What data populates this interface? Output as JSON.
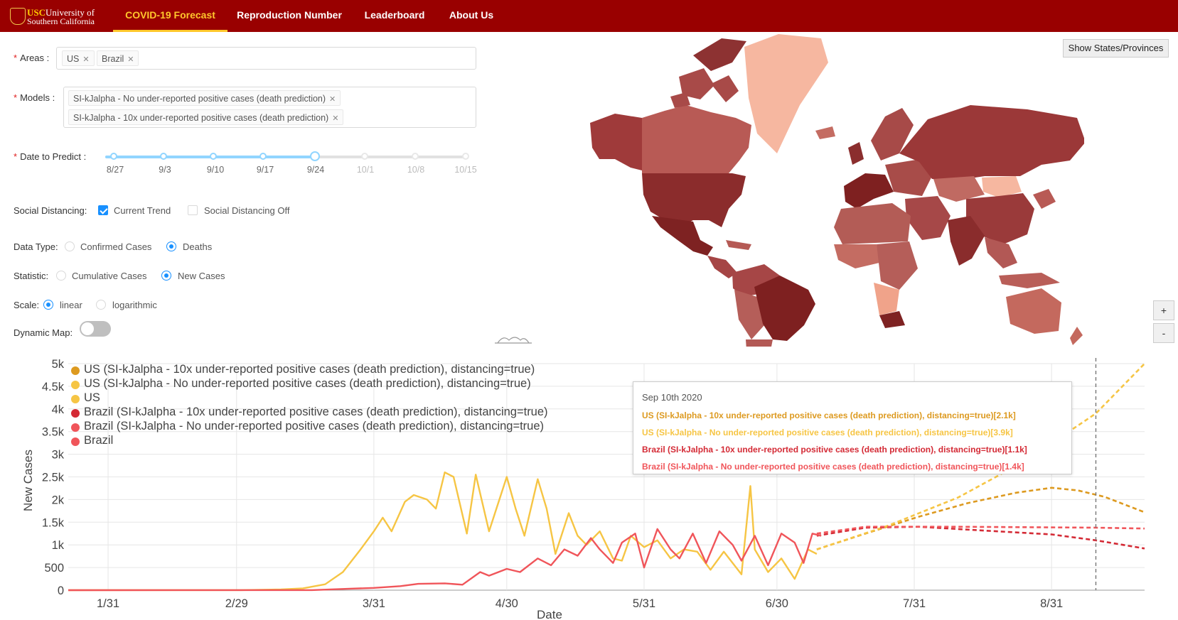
{
  "header": {
    "logo": {
      "abbr": "USC",
      "line1": "University of",
      "line2": "Southern California"
    },
    "nav": [
      {
        "label": "COVID-19 Forecast",
        "active": true
      },
      {
        "label": "Reproduction Number",
        "active": false
      },
      {
        "label": "Leaderboard",
        "active": false
      },
      {
        "label": "About Us",
        "active": false
      }
    ],
    "colors": {
      "bar": "#990000",
      "active": "#ffc72c"
    }
  },
  "form": {
    "areas": {
      "label": "Areas",
      "tags": [
        "US",
        "Brazil"
      ]
    },
    "models": {
      "label": "Models",
      "tags": [
        "SI-kJalpha - No under-reported positive cases (death prediction)",
        "SI-kJalpha - 10x under-reported positive cases (death prediction)"
      ]
    },
    "date": {
      "label": "Date to Predict",
      "marks": [
        "8/27",
        "9/3",
        "9/10",
        "9/17",
        "9/24",
        "10/1",
        "10/8",
        "10/15"
      ],
      "selected": "9/24"
    },
    "social": {
      "label": "Social Distancing:",
      "options": [
        {
          "label": "Current Trend",
          "checked": true
        },
        {
          "label": "Social Distancing Off",
          "checked": false
        }
      ]
    },
    "datatype": {
      "label": "Data Type:",
      "options": [
        {
          "label": "Confirmed Cases",
          "checked": false
        },
        {
          "label": "Deaths",
          "checked": true
        }
      ]
    },
    "statistic": {
      "label": "Statistic:",
      "options": [
        {
          "label": "Cumulative Cases",
          "checked": false
        },
        {
          "label": "New Cases",
          "checked": true
        }
      ]
    },
    "scale": {
      "label": "Scale:",
      "options": [
        {
          "label": "linear",
          "checked": true
        },
        {
          "label": "logarithmic",
          "checked": false
        }
      ]
    },
    "dynamic_map": {
      "label": "Dynamic Map:",
      "on": false
    }
  },
  "map": {
    "button": "Show States/Provinces",
    "zoom_in": "+",
    "zoom_out": "-"
  },
  "chart_data": {
    "type": "line",
    "xlabel": "Date",
    "ylabel": "New Cases",
    "ylim": [
      0,
      5000
    ],
    "yticks": [
      "0",
      "500",
      "1k",
      "1.5k",
      "2k",
      "2.5k",
      "3k",
      "3.5k",
      "4k",
      "4.5k",
      "5k"
    ],
    "xticks": [
      "1/31",
      "2/29",
      "3/31",
      "4/30",
      "5/31",
      "6/30",
      "7/31",
      "8/31"
    ],
    "x_range": [
      "2020-01-22",
      "2020-09-21"
    ],
    "hover_date": "2020-09-10",
    "series": [
      {
        "name": "US (SI-kJalpha - 10x under-reported positive cases (death prediction), distancing=true)",
        "color": "#dd9a20",
        "dash": true,
        "points": [
          [
            "2020-07-09",
            900
          ],
          [
            "2020-07-20",
            1250
          ],
          [
            "2020-08-01",
            1620
          ],
          [
            "2020-08-12",
            1920
          ],
          [
            "2020-08-23",
            2150
          ],
          [
            "2020-08-31",
            2260
          ],
          [
            "2020-09-06",
            2200
          ],
          [
            "2020-09-12",
            2060
          ],
          [
            "2020-09-21",
            1720
          ]
        ]
      },
      {
        "name": "US (SI-kJalpha - No under-reported positive cases (death prediction), distancing=true)",
        "color": "#f6c544",
        "dash": true,
        "points": [
          [
            "2020-07-09",
            900
          ],
          [
            "2020-07-25",
            1420
          ],
          [
            "2020-08-10",
            2050
          ],
          [
            "2020-08-25",
            2850
          ],
          [
            "2020-09-10",
            3900
          ],
          [
            "2020-09-21",
            5000
          ]
        ]
      },
      {
        "name": "US",
        "color": "#f6c544",
        "dash": false,
        "points": [
          [
            "2020-01-22",
            0
          ],
          [
            "2020-03-01",
            2
          ],
          [
            "2020-03-10",
            15
          ],
          [
            "2020-03-15",
            40
          ],
          [
            "2020-03-20",
            130
          ],
          [
            "2020-03-24",
            400
          ],
          [
            "2020-03-28",
            900
          ],
          [
            "2020-03-31",
            1300
          ],
          [
            "2020-04-02",
            1600
          ],
          [
            "2020-04-04",
            1300
          ],
          [
            "2020-04-07",
            1950
          ],
          [
            "2020-04-09",
            2100
          ],
          [
            "2020-04-12",
            2000
          ],
          [
            "2020-04-14",
            1800
          ],
          [
            "2020-04-16",
            2600
          ],
          [
            "2020-04-18",
            2500
          ],
          [
            "2020-04-21",
            1250
          ],
          [
            "2020-04-23",
            2550
          ],
          [
            "2020-04-26",
            1300
          ],
          [
            "2020-04-30",
            2500
          ],
          [
            "2020-05-02",
            1800
          ],
          [
            "2020-05-04",
            1200
          ],
          [
            "2020-05-07",
            2450
          ],
          [
            "2020-05-09",
            1800
          ],
          [
            "2020-05-11",
            800
          ],
          [
            "2020-05-14",
            1700
          ],
          [
            "2020-05-16",
            1200
          ],
          [
            "2020-05-18",
            1000
          ],
          [
            "2020-05-21",
            1300
          ],
          [
            "2020-05-24",
            700
          ],
          [
            "2020-05-26",
            650
          ],
          [
            "2020-05-28",
            1200
          ],
          [
            "2020-05-31",
            950
          ],
          [
            "2020-06-03",
            1100
          ],
          [
            "2020-06-06",
            700
          ],
          [
            "2020-06-09",
            900
          ],
          [
            "2020-06-12",
            850
          ],
          [
            "2020-06-15",
            450
          ],
          [
            "2020-06-18",
            850
          ],
          [
            "2020-06-22",
            350
          ],
          [
            "2020-06-24",
            2300
          ],
          [
            "2020-06-25",
            900
          ],
          [
            "2020-06-28",
            400
          ],
          [
            "2020-07-01",
            700
          ],
          [
            "2020-07-04",
            250
          ],
          [
            "2020-07-07",
            900
          ],
          [
            "2020-07-09",
            800
          ]
        ]
      },
      {
        "name": "Brazil (SI-kJalpha - 10x under-reported positive cases (death prediction), distancing=true)",
        "color": "#d42a35",
        "dash": true,
        "points": [
          [
            "2020-07-09",
            1200
          ],
          [
            "2020-07-20",
            1380
          ],
          [
            "2020-08-01",
            1400
          ],
          [
            "2020-08-15",
            1320
          ],
          [
            "2020-08-31",
            1230
          ],
          [
            "2020-09-10",
            1100
          ],
          [
            "2020-09-21",
            920
          ]
        ]
      },
      {
        "name": "Brazil (SI-kJalpha - No under-reported positive cases (death prediction), distancing=true)",
        "color": "#f0555a",
        "dash": true,
        "points": [
          [
            "2020-07-09",
            1250
          ],
          [
            "2020-07-20",
            1400
          ],
          [
            "2020-08-10",
            1400
          ],
          [
            "2020-09-10",
            1380
          ],
          [
            "2020-09-21",
            1360
          ]
        ]
      },
      {
        "name": "Brazil",
        "color": "#f0555a",
        "dash": false,
        "points": [
          [
            "2020-01-22",
            0
          ],
          [
            "2020-03-17",
            2
          ],
          [
            "2020-03-25",
            30
          ],
          [
            "2020-03-31",
            50
          ],
          [
            "2020-04-06",
            90
          ],
          [
            "2020-04-10",
            140
          ],
          [
            "2020-04-16",
            150
          ],
          [
            "2020-04-20",
            120
          ],
          [
            "2020-04-24",
            400
          ],
          [
            "2020-04-26",
            320
          ],
          [
            "2020-04-30",
            470
          ],
          [
            "2020-05-03",
            400
          ],
          [
            "2020-05-07",
            700
          ],
          [
            "2020-05-10",
            550
          ],
          [
            "2020-05-13",
            900
          ],
          [
            "2020-05-16",
            760
          ],
          [
            "2020-05-19",
            1150
          ],
          [
            "2020-05-21",
            900
          ],
          [
            "2020-05-24",
            600
          ],
          [
            "2020-05-26",
            1050
          ],
          [
            "2020-05-29",
            1250
          ],
          [
            "2020-05-31",
            500
          ],
          [
            "2020-06-03",
            1350
          ],
          [
            "2020-06-06",
            900
          ],
          [
            "2020-06-08",
            700
          ],
          [
            "2020-06-11",
            1250
          ],
          [
            "2020-06-14",
            600
          ],
          [
            "2020-06-17",
            1300
          ],
          [
            "2020-06-20",
            1000
          ],
          [
            "2020-06-22",
            650
          ],
          [
            "2020-06-25",
            1200
          ],
          [
            "2020-06-28",
            550
          ],
          [
            "2020-07-01",
            1250
          ],
          [
            "2020-07-04",
            1050
          ],
          [
            "2020-07-06",
            600
          ],
          [
            "2020-07-08",
            1250
          ],
          [
            "2020-07-10",
            1200
          ]
        ]
      }
    ],
    "tooltip": {
      "date": "Sep 10th 2020",
      "rows": [
        {
          "text": "US (SI-kJalpha - 10x under-reported positive cases (death prediction), distancing=true)[2.1k]",
          "color": "#dd9a20"
        },
        {
          "text": "US (SI-kJalpha - No under-reported positive cases (death prediction), distancing=true)[3.9k]",
          "color": "#f6c544"
        },
        {
          "text": "Brazil (SI-kJalpha - 10x under-reported positive cases (death prediction), distancing=true)[1.1k]",
          "color": "#d42a35"
        },
        {
          "text": "Brazil (SI-kJalpha - No under-reported positive cases (death prediction), distancing=true)[1.4k]",
          "color": "#f0555a"
        }
      ]
    },
    "legend": [
      {
        "name": "US (SI-kJalpha - 10x under-reported positive cases (death prediction), distancing=true)",
        "color": "#dd9a20"
      },
      {
        "name": "US (SI-kJalpha - No under-reported positive cases (death prediction), distancing=true)",
        "color": "#f6c544"
      },
      {
        "name": "US",
        "color": "#f6c544"
      },
      {
        "name": "Brazil (SI-kJalpha - 10x under-reported positive cases (death prediction), distancing=true)",
        "color": "#d42a35"
      },
      {
        "name": "Brazil (SI-kJalpha - No under-reported positive cases (death prediction), distancing=true)",
        "color": "#f0555a"
      },
      {
        "name": "Brazil",
        "color": "#f0555a"
      }
    ]
  }
}
